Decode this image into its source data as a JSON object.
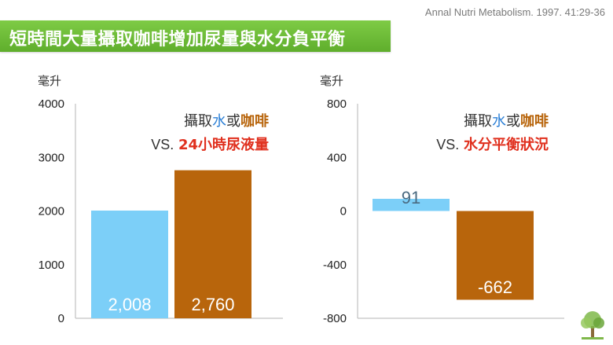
{
  "citation": "Annal Nutri Metabolism. 1997. 41:29-36",
  "banner": {
    "title": "短時間大量攝取咖啡增加尿量與水分負平衡"
  },
  "colors": {
    "water": "#7ccff8",
    "coffee": "#b8650c",
    "water_text": "#2b7fd6",
    "measure_text": "#e0301e",
    "banner_green": "#6cbc36"
  },
  "chart_data": [
    {
      "type": "bar",
      "unit_label": "毫升",
      "categories": [
        "水",
        "咖啡"
      ],
      "values": [
        2008,
        2760
      ],
      "data_labels": [
        "2,008",
        "2,760"
      ],
      "ylim": [
        0,
        4000
      ],
      "yticks": [
        "4000",
        "3000",
        "2000",
        "1000",
        "0"
      ],
      "ytick_values": [
        4000,
        3000,
        2000,
        1000,
        0
      ],
      "legend": {
        "prefix": "攝取",
        "water": "水",
        "or": "或",
        "coffee": "咖啡",
        "vs": "VS.",
        "measure": "24小時尿液量"
      },
      "grid": false
    },
    {
      "type": "bar",
      "unit_label": "毫升",
      "categories": [
        "水",
        "咖啡"
      ],
      "values": [
        91,
        -662
      ],
      "data_labels": [
        "91",
        "-662"
      ],
      "ylim": [
        -800,
        800
      ],
      "yticks": [
        "800",
        "400",
        "0",
        "-400",
        "-800"
      ],
      "ytick_values": [
        800,
        400,
        0,
        -400,
        -800
      ],
      "legend": {
        "prefix": "攝取",
        "water": "水",
        "or": "或",
        "coffee": "咖啡",
        "vs": "VS.",
        "measure": "水分平衡狀況"
      },
      "grid": false
    }
  ],
  "icons": {
    "logo": "tree-logo-icon"
  }
}
